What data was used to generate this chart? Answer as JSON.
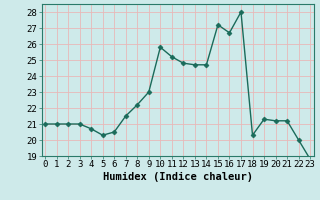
{
  "x": [
    0,
    1,
    2,
    3,
    4,
    5,
    6,
    7,
    8,
    9,
    10,
    11,
    12,
    13,
    14,
    15,
    16,
    17,
    18,
    19,
    20,
    21,
    22,
    23
  ],
  "y": [
    21.0,
    21.0,
    21.0,
    21.0,
    20.7,
    20.3,
    20.5,
    21.5,
    22.2,
    23.0,
    25.8,
    25.2,
    24.8,
    24.7,
    24.7,
    27.2,
    26.7,
    28.0,
    20.3,
    21.3,
    21.2,
    21.2,
    20.0,
    18.8
  ],
  "line_color": "#1a6b5a",
  "marker": "D",
  "marker_size": 2.5,
  "bg_color": "#ceeaea",
  "grid_color": "#e8b8b8",
  "xlabel": "Humidex (Indice chaleur)",
  "ylim": [
    19,
    28.5
  ],
  "yticks": [
    19,
    20,
    21,
    22,
    23,
    24,
    25,
    26,
    27,
    28
  ],
  "xticks": [
    0,
    1,
    2,
    3,
    4,
    5,
    6,
    7,
    8,
    9,
    10,
    11,
    12,
    13,
    14,
    15,
    16,
    17,
    18,
    19,
    20,
    21,
    22,
    23
  ],
  "xlabel_fontsize": 7.5,
  "tick_fontsize": 6.5,
  "line_width": 1.0
}
